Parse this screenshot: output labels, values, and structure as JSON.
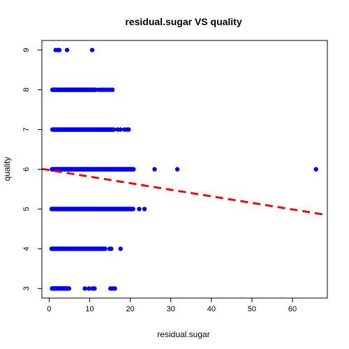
{
  "chart_data": {
    "type": "scatter",
    "title": "residual.sugar VS quality",
    "xlabel": "residual.sugar",
    "ylabel": "quality",
    "xlim": [
      -1.8,
      68.6
    ],
    "ylim": [
      2.76,
      9.24
    ],
    "x_ticks": [
      0,
      10,
      20,
      30,
      40,
      50,
      60
    ],
    "y_ticks": [
      3,
      4,
      5,
      6,
      7,
      8,
      9
    ],
    "point_color": "#0000ff",
    "trend_line": {
      "color": "#ff0000",
      "style": "dashed",
      "intercept": 5.98,
      "slope": -0.0165
    },
    "groups": [
      {
        "quality": 3,
        "segments": [
          [
            0.7,
            4.9
          ]
        ],
        "points": [
          8.8,
          9.8,
          10.7,
          11.2,
          15.1,
          15.6,
          16.2
        ]
      },
      {
        "quality": 4,
        "segments": [
          [
            0.6,
            13.9
          ]
        ],
        "points": [
          14.9,
          15.3,
          17.6
        ]
      },
      {
        "quality": 5,
        "segments": [
          [
            0.6,
            20.8
          ]
        ],
        "points": [
          22.2,
          23.5
        ]
      },
      {
        "quality": 6,
        "segments": [
          [
            0.7,
            20.9
          ]
        ],
        "points": [
          26.0,
          31.6,
          65.8
        ]
      },
      {
        "quality": 7,
        "segments": [
          [
            0.8,
            16.0
          ]
        ],
        "points": [
          16.9,
          17.6,
          18.6,
          19.2,
          19.6
        ]
      },
      {
        "quality": 8,
        "segments": [
          [
            0.8,
            11.5
          ]
        ],
        "points": [
          12.2,
          12.8,
          13.4,
          13.9,
          14.5,
          15.1,
          15.6
        ]
      },
      {
        "quality": 9,
        "segments": [],
        "points": [
          1.6,
          2.2,
          2.5,
          4.4,
          10.6
        ]
      }
    ]
  }
}
